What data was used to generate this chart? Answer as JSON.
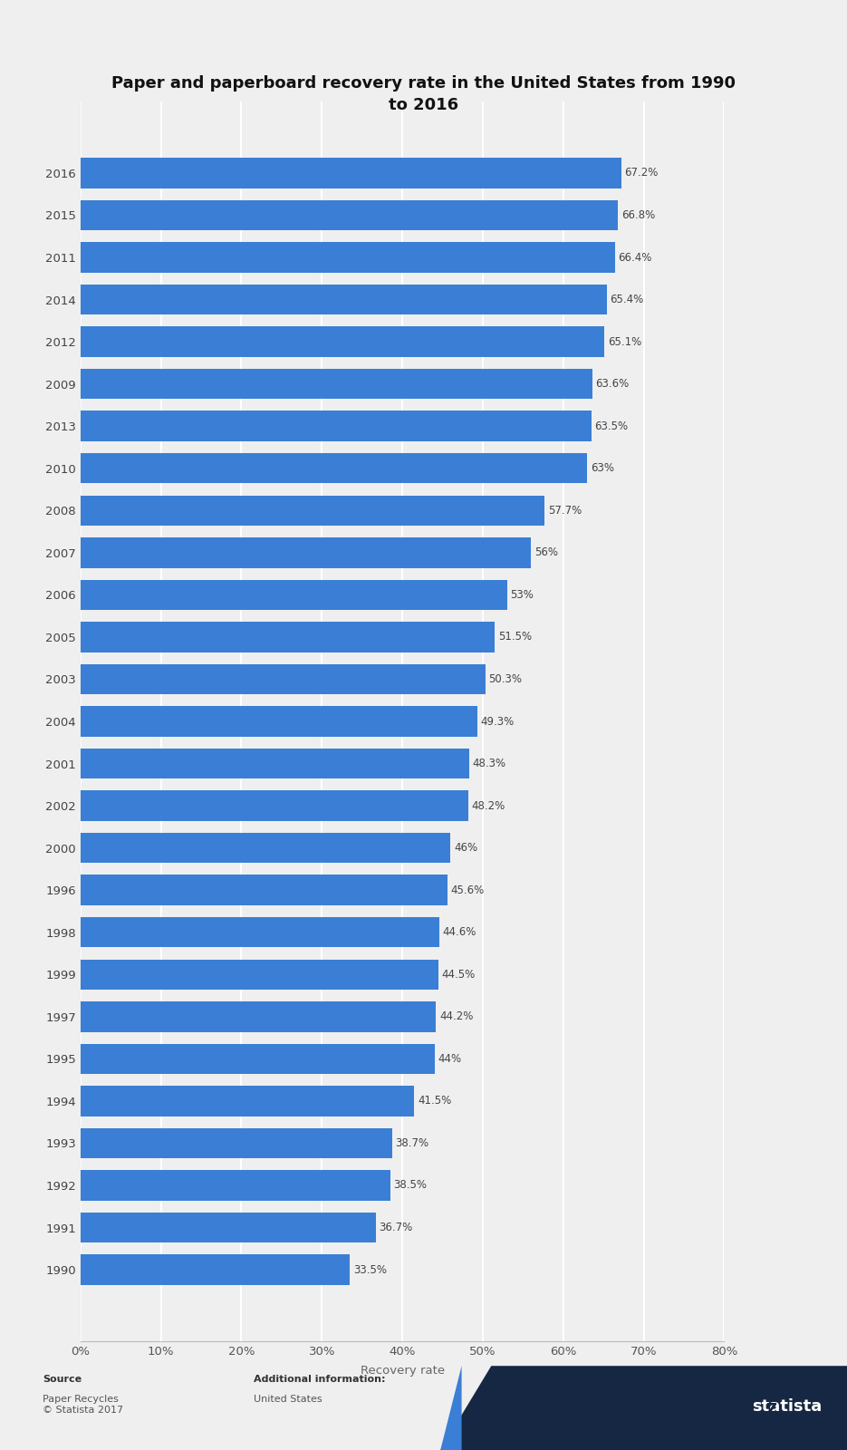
{
  "title": "Paper and paperboard recovery rate in the United States from 1990\nto 2016",
  "categories": [
    "2016",
    "2015",
    "2011",
    "2014",
    "2012",
    "2009",
    "2013",
    "2010",
    "2008",
    "2007",
    "2006",
    "2005",
    "2003",
    "2004",
    "2001",
    "2002",
    "2000",
    "1996",
    "1998",
    "1999",
    "1997",
    "1995",
    "1994",
    "1993",
    "1992",
    "1991",
    "1990"
  ],
  "values": [
    67.2,
    66.8,
    66.4,
    65.4,
    65.1,
    63.6,
    63.5,
    63.0,
    57.7,
    56.0,
    53.0,
    51.5,
    50.3,
    49.3,
    48.3,
    48.2,
    46.0,
    45.6,
    44.6,
    44.5,
    44.2,
    44.0,
    41.5,
    38.7,
    38.5,
    36.7,
    33.5
  ],
  "value_labels": [
    "67.2%",
    "66.8%",
    "66.4%",
    "65.4%",
    "65.1%",
    "63.6%",
    "63.5%",
    "63%",
    "57.7%",
    "56%",
    "53%",
    "51.5%",
    "50.3%",
    "49.3%",
    "48.3%",
    "48.2%",
    "46%",
    "45.6%",
    "44.6%",
    "44.5%",
    "44.2%",
    "44%",
    "41.5%",
    "38.7%",
    "38.5%",
    "36.7%",
    "33.5%"
  ],
  "bar_color": "#3a7fd5",
  "background_color": "#efefef",
  "plot_background_color": "#efefef",
  "xlabel": "Recovery rate",
  "xlim": [
    0,
    80
  ],
  "xticks": [
    0,
    10,
    20,
    30,
    40,
    50,
    60,
    70,
    80
  ],
  "xtick_labels": [
    "0%",
    "10%",
    "20%",
    "30%",
    "40%",
    "50%",
    "60%",
    "70%",
    "80%"
  ],
  "title_fontsize": 13,
  "tick_fontsize": 9.5,
  "label_fontsize": 9.5,
  "source_label": "Source",
  "source_body": "Paper Recycles\n© Statista 2017",
  "additional_label": "Additional information:",
  "additional_body": "United States",
  "footer_bg": "#152742",
  "statista_text": "statista"
}
